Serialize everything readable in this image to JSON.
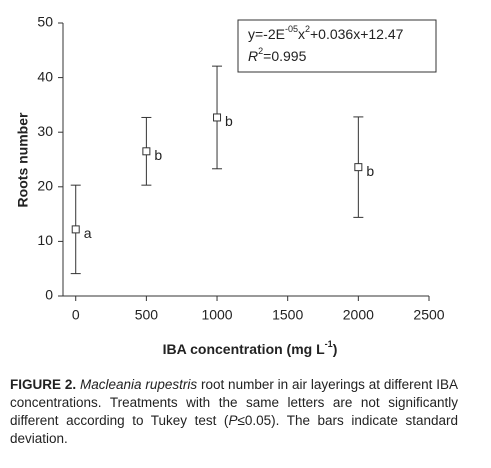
{
  "chart_data": {
    "type": "scatter",
    "x_label": "IBA concentration (mg L",
    "x_label_sup": "-1",
    "x_label_end": ")",
    "y_label": "Roots number",
    "equation": [
      "y=-2E",
      "-05",
      "x",
      "2",
      "+0.036x+12.47"
    ],
    "r2": [
      "R",
      "2",
      "=0.995"
    ],
    "x": [
      0,
      500,
      1000,
      2000
    ],
    "series": [
      {
        "color": "#333333",
        "values": [
          12.2,
          26.5,
          32.7,
          23.6
        ],
        "errors": [
          8.1,
          6.2,
          9.4,
          9.2
        ],
        "letters": [
          "a",
          "b",
          "b",
          "b"
        ]
      }
    ],
    "xlim": [
      -90,
      2500
    ],
    "xticks": [
      0,
      500,
      1000,
      1500,
      2000,
      2500
    ],
    "ylim": [
      0,
      50
    ],
    "yticks": [
      0,
      10,
      20,
      30,
      40,
      50
    ],
    "grid": false
  },
  "caption": {
    "figure": "FIGURE 2.",
    "species": "Macleania rupestris",
    "text1": " root number in air layerings at different IBA concentrations. Treatments with the same letters are not significantly different according to Tukey test (",
    "p": "P",
    "text2": "≤0.05). The bars indicate standard deviation."
  }
}
